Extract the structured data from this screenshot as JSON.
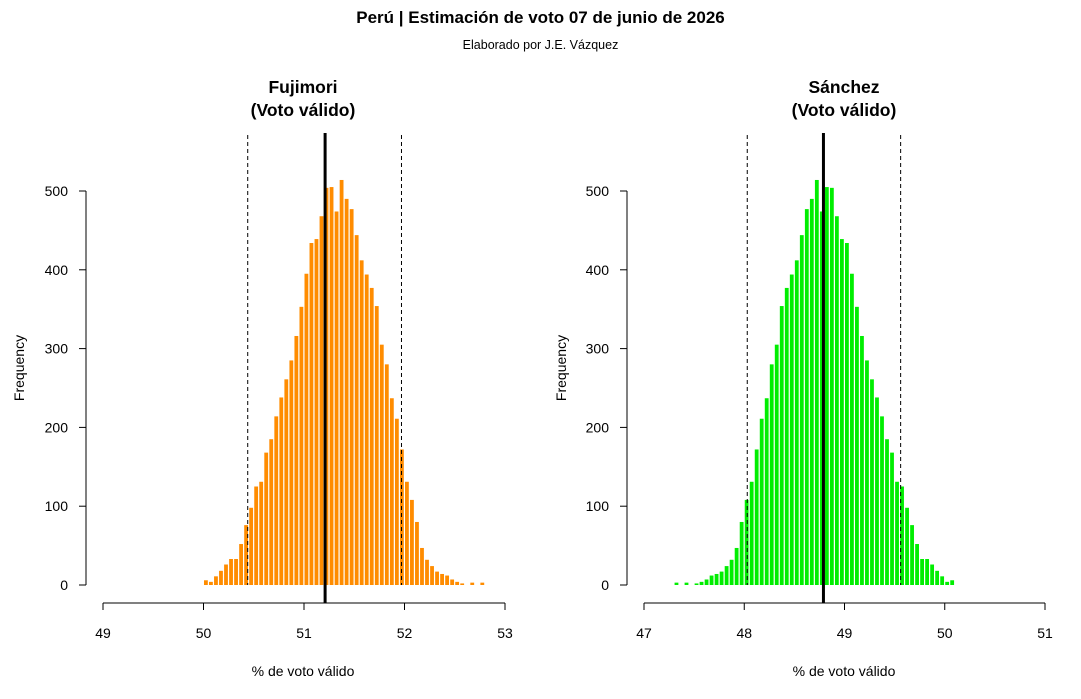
{
  "title": "Perú | Estimación de voto 07 de junio de 2026",
  "subtitle": "Elaborado por J.E. Vázquez",
  "chart_data": [
    {
      "type": "bar",
      "subtype": "histogram",
      "title_line1": "Fujimori",
      "title_line2": "(Voto válido)",
      "xlabel": "% de voto válido",
      "ylabel": "Frequency",
      "xlim": [
        49,
        53
      ],
      "ylim": [
        0,
        530
      ],
      "xticks": [
        49,
        50,
        51,
        52,
        53
      ],
      "yticks": [
        0,
        100,
        200,
        300,
        400,
        500
      ],
      "bin_width": 0.05,
      "bin_start": 50.0,
      "color": "#ff8c00",
      "mean": 51.21,
      "ci_low": 50.44,
      "ci_high": 51.97,
      "values": [
        6,
        4,
        11,
        18,
        26,
        33,
        33,
        52,
        76,
        98,
        125,
        131,
        168,
        185,
        214,
        238,
        261,
        285,
        316,
        353,
        395,
        434,
        439,
        468,
        504,
        505,
        474,
        514,
        490,
        477,
        444,
        412,
        394,
        377,
        354,
        305,
        280,
        237,
        211,
        172,
        131,
        108,
        80,
        47,
        32,
        24,
        17,
        14,
        12,
        7,
        4,
        2,
        0,
        3,
        0,
        3
      ]
    },
    {
      "type": "bar",
      "subtype": "histogram",
      "title_line1": "Sánchez",
      "title_line2": "(Voto válido)",
      "xlabel": "% de voto válido",
      "ylabel": "Frequency",
      "xlim": [
        47,
        51
      ],
      "ylim": [
        0,
        530
      ],
      "xticks": [
        47,
        48,
        49,
        50,
        51
      ],
      "yticks": [
        0,
        100,
        200,
        300,
        400,
        500
      ],
      "bin_width": 0.05,
      "bin_start": 47.3,
      "color": "#00ee00",
      "mean": 48.79,
      "ci_low": 48.03,
      "ci_high": 49.56,
      "values": [
        3,
        0,
        3,
        0,
        2,
        4,
        7,
        12,
        14,
        17,
        24,
        32,
        47,
        80,
        108,
        131,
        172,
        211,
        237,
        280,
        305,
        354,
        377,
        394,
        412,
        444,
        477,
        490,
        514,
        474,
        505,
        504,
        468,
        439,
        434,
        395,
        353,
        316,
        285,
        261,
        238,
        214,
        185,
        168,
        131,
        125,
        98,
        76,
        52,
        33,
        33,
        26,
        18,
        11,
        4,
        6
      ]
    }
  ]
}
